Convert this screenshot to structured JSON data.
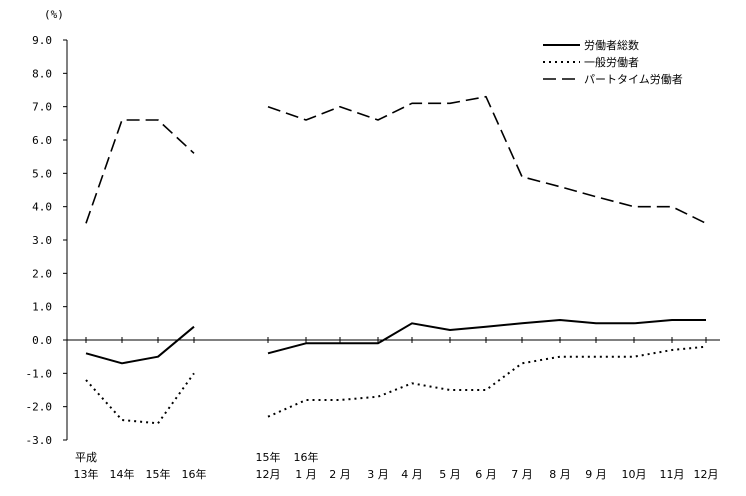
{
  "chart_data": {
    "type": "line",
    "y_unit": "(%)",
    "ylim": [
      -3.0,
      9.0
    ],
    "yticks": [
      "9.0",
      "8.0",
      "7.0",
      "6.0",
      "5.0",
      "4.0",
      "3.0",
      "2.0",
      "1.0",
      "0.0",
      "-1.0",
      "-2.0",
      "-3.0"
    ],
    "grid": false,
    "legend_position": "top-right",
    "groups": [
      {
        "categories": [
          {
            "top": "平成",
            "bottom": "13年"
          },
          {
            "top": "",
            "bottom": "14年"
          },
          {
            "top": "",
            "bottom": "15年"
          },
          {
            "top": "",
            "bottom": "16年"
          }
        ]
      },
      {
        "categories": [
          {
            "top": "15年",
            "bottom": "12月"
          },
          {
            "top": "16年",
            "bottom": "1 月"
          },
          {
            "top": "",
            "bottom": "2 月"
          },
          {
            "top": "",
            "bottom": "3 月"
          },
          {
            "top": "",
            "bottom": "4 月"
          },
          {
            "top": "",
            "bottom": "5 月"
          },
          {
            "top": "",
            "bottom": "6 月"
          },
          {
            "top": "",
            "bottom": "7 月"
          },
          {
            "top": "",
            "bottom": "8 月"
          },
          {
            "top": "",
            "bottom": "9 月"
          },
          {
            "top": "",
            "bottom": "10月"
          },
          {
            "top": "",
            "bottom": "11月"
          },
          {
            "top": "",
            "bottom": "12月"
          }
        ]
      }
    ],
    "series": [
      {
        "name": "労働者総数",
        "style": "solid",
        "values": [
          [
            -0.4,
            -0.7,
            -0.5,
            0.4
          ],
          [
            -0.4,
            -0.1,
            -0.1,
            -0.1,
            0.5,
            0.3,
            0.4,
            0.5,
            0.6,
            0.5,
            0.5,
            0.6,
            0.6
          ]
        ]
      },
      {
        "name": "一般労働者",
        "style": "dotted",
        "values": [
          [
            -1.2,
            -2.4,
            -2.5,
            -1.0
          ],
          [
            -2.3,
            -1.8,
            -1.8,
            -1.7,
            -1.3,
            -1.5,
            -1.5,
            -0.7,
            -0.5,
            -0.5,
            -0.5,
            -0.3,
            -0.2
          ]
        ]
      },
      {
        "name": "パートタイム労働者",
        "style": "dashed",
        "values": [
          [
            3.5,
            6.6,
            6.6,
            5.6
          ],
          [
            7.0,
            6.6,
            7.0,
            6.6,
            7.1,
            7.1,
            7.3,
            4.9,
            4.6,
            4.3,
            4.0,
            4.0,
            3.5
          ]
        ]
      }
    ]
  }
}
